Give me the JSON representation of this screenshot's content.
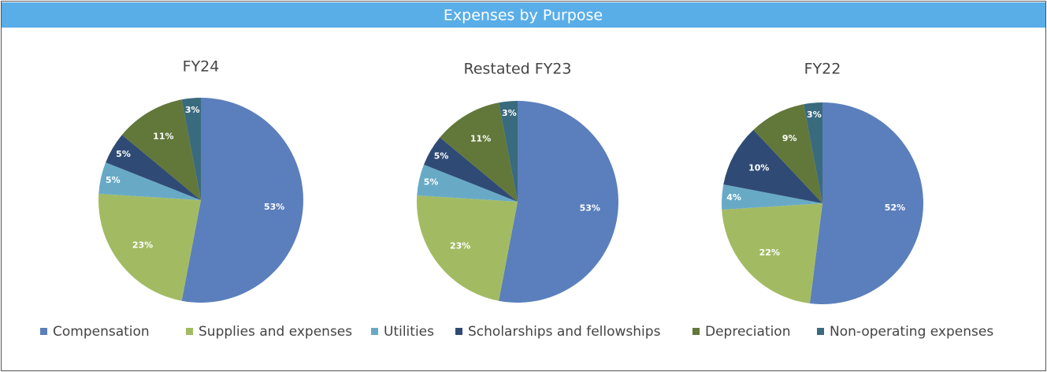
{
  "chart_data": {
    "type": "pie",
    "title": "Expenses by Purpose",
    "categories": [
      "Compensation",
      "Supplies and expenses",
      "Utilities",
      "Scholarships and fellowships",
      "Depreciation",
      "Non-operating expenses"
    ],
    "colors": [
      "#5b7fbc",
      "#a2bb63",
      "#68aac6",
      "#2f4b75",
      "#62773a",
      "#3a6a7e"
    ],
    "pies": [
      {
        "title": "FY24",
        "values": [
          53,
          23,
          5,
          5,
          11,
          3
        ],
        "value_labels": [
          "53%",
          "23%",
          "5%",
          "5%",
          "11%",
          "3%"
        ]
      },
      {
        "title": "Restated FY23",
        "values": [
          53,
          23,
          5,
          5,
          11,
          3
        ],
        "value_labels": [
          "53%",
          "23%",
          "5%",
          "5%",
          "11%",
          "3%"
        ]
      },
      {
        "title": "FY22",
        "values": [
          52,
          22,
          4,
          10,
          9,
          3
        ],
        "value_labels": [
          "52%",
          "22%",
          "4%",
          "10%",
          "9%",
          "3%"
        ]
      }
    ]
  }
}
